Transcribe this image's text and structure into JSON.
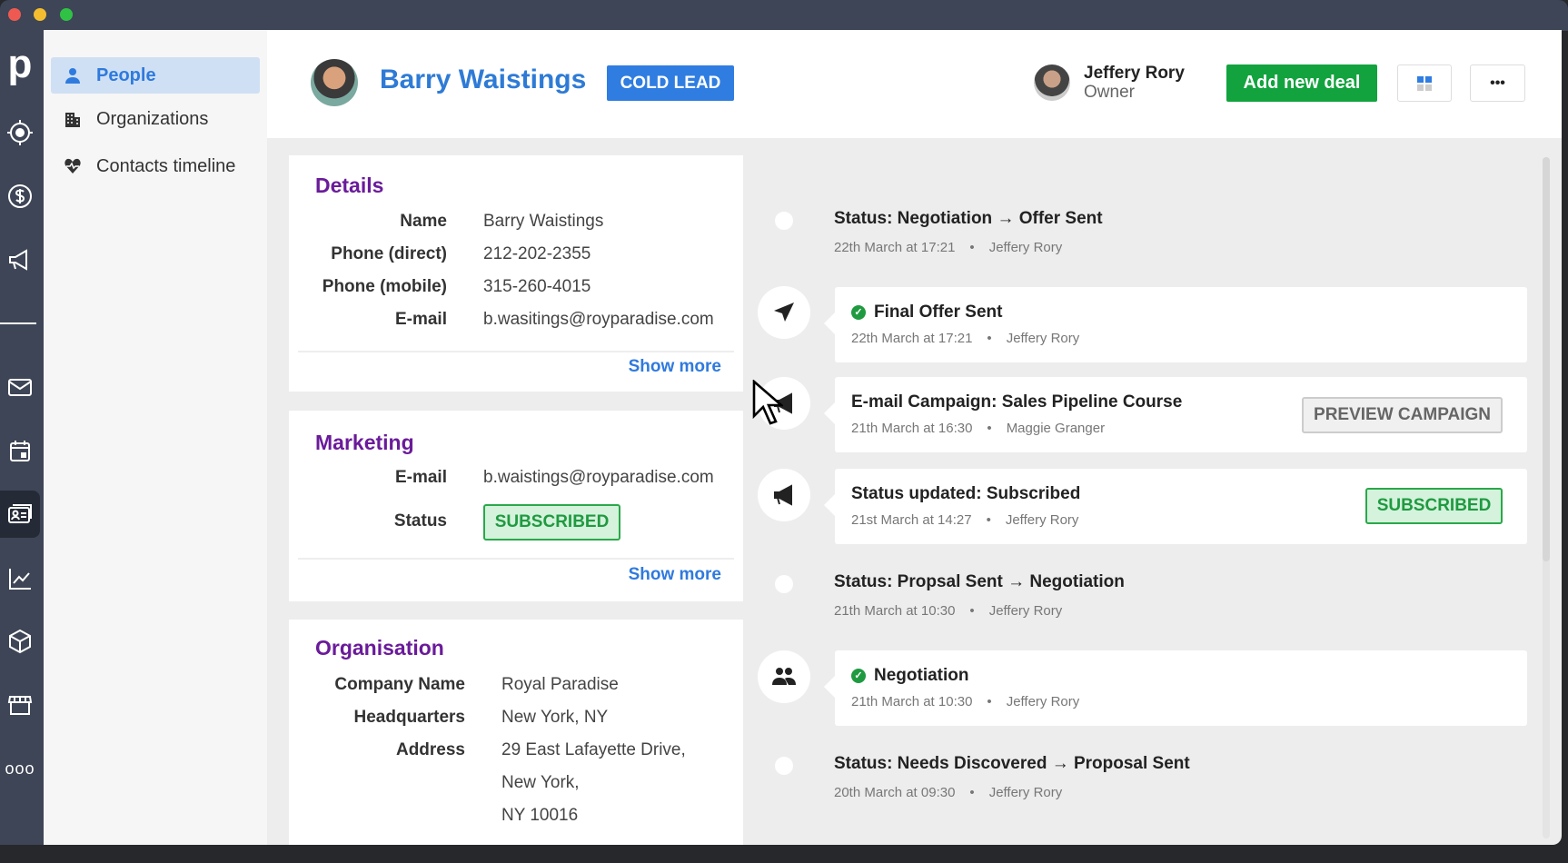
{
  "nav": {
    "items": [
      {
        "label": "People",
        "icon": "person-icon",
        "active": true
      },
      {
        "label": "Organizations",
        "icon": "building-icon"
      },
      {
        "label": "Contacts timeline",
        "icon": "heart-pulse-icon"
      }
    ]
  },
  "rail": {
    "icons": [
      "pipedrive-logo",
      "target-icon",
      "dollar-icon",
      "megaphone-icon",
      "mail-icon",
      "calendar-icon",
      "contacts-icon",
      "chart-icon",
      "box-icon",
      "store-icon",
      "more-icon"
    ]
  },
  "header": {
    "name": "Barry Waistings",
    "badge": "COLD LEAD",
    "owner_name": "Jeffery Rory",
    "owner_role": "Owner",
    "add_deal": "Add new deal",
    "more": "•••"
  },
  "details": {
    "title": "Details",
    "rows": [
      {
        "label": "Name",
        "value": "Barry Waistings"
      },
      {
        "label": "Phone (direct)",
        "value": "212-202-2355"
      },
      {
        "label": "Phone (mobile)",
        "value": "315-260-4015"
      },
      {
        "label": "E-mail",
        "value": "b.wasitings@royparadise.com"
      }
    ],
    "show_more": "Show more"
  },
  "marketing": {
    "title": "Marketing",
    "email_label": "E-mail",
    "email": "b.waistings@royparadise.com",
    "status_label": "Status",
    "status": "SUBSCRIBED",
    "show_more": "Show more"
  },
  "organisation": {
    "title": "Organisation",
    "rows": [
      {
        "label": "Company Name",
        "value": "Royal Paradise"
      },
      {
        "label": "Headquarters",
        "value": "New York, NY"
      },
      {
        "label": "Address",
        "value": "29 East Lafayette Drive,"
      },
      {
        "label": "",
        "value": "New York,"
      },
      {
        "label": "",
        "value": "NY 10016"
      }
    ]
  },
  "timeline": [
    {
      "title": "Status: Negotiation  → Offer Sent",
      "date": "22th March at 17:21",
      "user": "Jeffery Rory"
    },
    {
      "title": "Final Offer Sent",
      "date": "22th March at 17:21",
      "user": "Jeffery Rory"
    },
    {
      "title": "E-mail Campaign: Sales Pipeline Course",
      "date": "21th March at 16:30",
      "user": "Maggie Granger",
      "action": "PREVIEW CAMPAIGN"
    },
    {
      "title": "Status updated: Subscribed",
      "date": "21st March at 14:27",
      "user": "Jeffery Rory",
      "badge": "SUBSCRIBED"
    },
    {
      "title": "Status: Propsal Sent  → Negotiation",
      "date": "21th March at 10:30",
      "user": "Jeffery Rory"
    },
    {
      "title": "Negotiation",
      "date": "21th March at 10:30",
      "user": "Jeffery Rory"
    },
    {
      "title": "Status: Needs Discovered  → Proposal Sent",
      "date": "20th March at 09:30",
      "user": "Jeffery Rory"
    }
  ],
  "colors": {
    "brand_blue": "#2f7de1",
    "green": "#12a33e",
    "purple": "#6a1b9a",
    "rail": "#3e4556"
  }
}
